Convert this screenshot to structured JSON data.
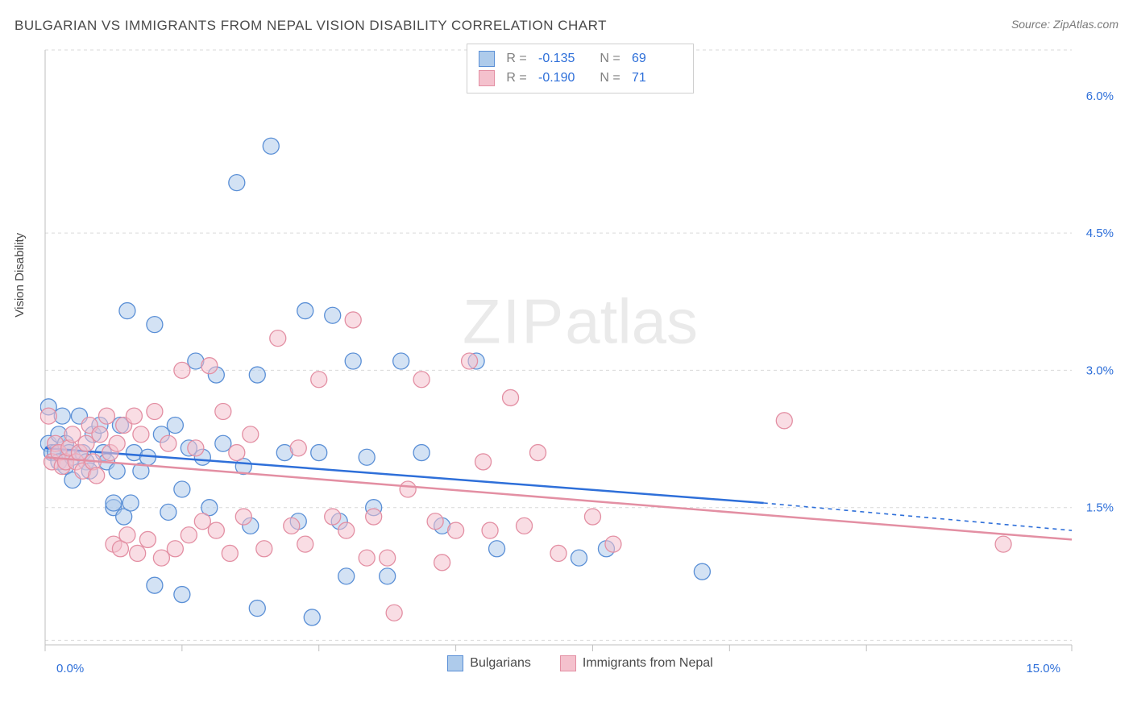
{
  "header": {
    "title": "BULGARIAN VS IMMIGRANTS FROM NEPAL VISION DISABILITY CORRELATION CHART",
    "source": "Source: ZipAtlas.com"
  },
  "ylabel": "Vision Disability",
  "watermark": {
    "left": "ZIP",
    "right": "atlas"
  },
  "chart": {
    "type": "scatter",
    "xlim": [
      0,
      15
    ],
    "ylim": [
      0,
      6.5
    ],
    "xticks": [
      0,
      2,
      4,
      6,
      8,
      10,
      12,
      15
    ],
    "xlabels_shown": {
      "0": "0.0%",
      "15": "15.0%"
    },
    "yticks": [
      1.5,
      3.0,
      4.5,
      6.0
    ],
    "ylabels": [
      "1.5%",
      "3.0%",
      "4.5%",
      "6.0%"
    ],
    "grid_y": [
      0.05,
      1.5,
      3.0,
      4.5,
      6.5
    ],
    "background": "#ffffff",
    "grid_color": "#d9d9d9",
    "axis_color": "#bfbfbf",
    "label_color": "#2e6fd9",
    "marker_r": 10,
    "series": [
      {
        "name": "Bulgarians",
        "fill": "#aecbeb",
        "stroke": "#5a8fd6",
        "fill_opacity": 0.55,
        "line_color": "#2e6fd9",
        "line_dash_color": "#2e6fd9",
        "R": "-0.135",
        "N": "69",
        "trend": {
          "x0": 0,
          "y0": 2.15,
          "x1": 10.5,
          "y1": 1.55,
          "x2": 15,
          "y2": 1.25
        },
        "points": [
          [
            0.05,
            2.6
          ],
          [
            0.05,
            2.2
          ],
          [
            0.1,
            2.1
          ],
          [
            0.15,
            2.1
          ],
          [
            0.2,
            2.0
          ],
          [
            0.2,
            2.3
          ],
          [
            0.25,
            2.5
          ],
          [
            0.3,
            1.95
          ],
          [
            0.3,
            2.2
          ],
          [
            0.35,
            2.1
          ],
          [
            0.4,
            1.8
          ],
          [
            0.4,
            2.05
          ],
          [
            0.5,
            2.5
          ],
          [
            0.55,
            2.1
          ],
          [
            0.6,
            2.0
          ],
          [
            0.65,
            1.9
          ],
          [
            0.7,
            2.3
          ],
          [
            0.8,
            2.4
          ],
          [
            0.85,
            2.1
          ],
          [
            0.9,
            2.0
          ],
          [
            1.0,
            1.5
          ],
          [
            1.0,
            1.55
          ],
          [
            1.05,
            1.9
          ],
          [
            1.1,
            2.4
          ],
          [
            1.15,
            1.4
          ],
          [
            1.2,
            3.65
          ],
          [
            1.25,
            1.55
          ],
          [
            1.3,
            2.1
          ],
          [
            1.4,
            1.9
          ],
          [
            1.5,
            2.05
          ],
          [
            1.6,
            3.5
          ],
          [
            1.6,
            0.65
          ],
          [
            1.7,
            2.3
          ],
          [
            1.8,
            1.45
          ],
          [
            1.9,
            2.4
          ],
          [
            2.0,
            1.7
          ],
          [
            2.0,
            0.55
          ],
          [
            2.1,
            2.15
          ],
          [
            2.2,
            3.1
          ],
          [
            2.3,
            2.05
          ],
          [
            2.4,
            1.5
          ],
          [
            2.5,
            2.95
          ],
          [
            2.6,
            2.2
          ],
          [
            2.8,
            5.05
          ],
          [
            2.9,
            1.95
          ],
          [
            3.0,
            1.3
          ],
          [
            3.1,
            2.95
          ],
          [
            3.1,
            0.4
          ],
          [
            3.3,
            5.45
          ],
          [
            3.5,
            2.1
          ],
          [
            3.7,
            1.35
          ],
          [
            3.8,
            3.65
          ],
          [
            3.9,
            0.3
          ],
          [
            4.0,
            2.1
          ],
          [
            4.2,
            3.6
          ],
          [
            4.3,
            1.35
          ],
          [
            4.4,
            0.75
          ],
          [
            4.5,
            3.1
          ],
          [
            4.7,
            2.05
          ],
          [
            4.8,
            1.5
          ],
          [
            5.0,
            0.75
          ],
          [
            5.2,
            3.1
          ],
          [
            5.5,
            2.1
          ],
          [
            5.8,
            1.3
          ],
          [
            6.3,
            3.1
          ],
          [
            6.6,
            1.05
          ],
          [
            7.8,
            0.95
          ],
          [
            8.2,
            1.05
          ],
          [
            9.6,
            0.8
          ]
        ]
      },
      {
        "name": "Immigrants from Nepal",
        "fill": "#f4c1cd",
        "stroke": "#e38fa3",
        "fill_opacity": 0.55,
        "line_color": "#e38fa3",
        "line_dash_color": "#e38fa3",
        "R": "-0.190",
        "N": "71",
        "trend": {
          "x0": 0,
          "y0": 2.05,
          "x1": 15,
          "y1": 1.15,
          "x2": 15,
          "y2": 1.15
        },
        "points": [
          [
            0.05,
            2.5
          ],
          [
            0.1,
            2.0
          ],
          [
            0.15,
            2.2
          ],
          [
            0.2,
            2.1
          ],
          [
            0.25,
            1.95
          ],
          [
            0.3,
            2.0
          ],
          [
            0.35,
            2.15
          ],
          [
            0.4,
            2.3
          ],
          [
            0.45,
            2.0
          ],
          [
            0.5,
            2.1
          ],
          [
            0.55,
            1.9
          ],
          [
            0.6,
            2.2
          ],
          [
            0.65,
            2.4
          ],
          [
            0.7,
            2.0
          ],
          [
            0.75,
            1.85
          ],
          [
            0.8,
            2.3
          ],
          [
            0.9,
            2.5
          ],
          [
            0.95,
            2.1
          ],
          [
            1.0,
            1.1
          ],
          [
            1.05,
            2.2
          ],
          [
            1.1,
            1.05
          ],
          [
            1.15,
            2.4
          ],
          [
            1.2,
            1.2
          ],
          [
            1.3,
            2.5
          ],
          [
            1.35,
            1.0
          ],
          [
            1.4,
            2.3
          ],
          [
            1.5,
            1.15
          ],
          [
            1.6,
            2.55
          ],
          [
            1.7,
            0.95
          ],
          [
            1.8,
            2.2
          ],
          [
            1.9,
            1.05
          ],
          [
            2.0,
            3.0
          ],
          [
            2.1,
            1.2
          ],
          [
            2.2,
            2.15
          ],
          [
            2.3,
            1.35
          ],
          [
            2.4,
            3.05
          ],
          [
            2.5,
            1.25
          ],
          [
            2.6,
            2.55
          ],
          [
            2.7,
            1.0
          ],
          [
            2.8,
            2.1
          ],
          [
            2.9,
            1.4
          ],
          [
            3.0,
            2.3
          ],
          [
            3.2,
            1.05
          ],
          [
            3.4,
            3.35
          ],
          [
            3.6,
            1.3
          ],
          [
            3.7,
            2.15
          ],
          [
            3.8,
            1.1
          ],
          [
            4.0,
            2.9
          ],
          [
            4.2,
            1.4
          ],
          [
            4.4,
            1.25
          ],
          [
            4.5,
            3.55
          ],
          [
            4.7,
            0.95
          ],
          [
            4.8,
            1.4
          ],
          [
            5.0,
            0.95
          ],
          [
            5.1,
            0.35
          ],
          [
            5.3,
            1.7
          ],
          [
            5.5,
            2.9
          ],
          [
            5.7,
            1.35
          ],
          [
            5.8,
            0.9
          ],
          [
            6.0,
            1.25
          ],
          [
            6.2,
            3.1
          ],
          [
            6.4,
            2.0
          ],
          [
            6.5,
            1.25
          ],
          [
            6.8,
            2.7
          ],
          [
            7.0,
            1.3
          ],
          [
            7.2,
            2.1
          ],
          [
            7.5,
            1.0
          ],
          [
            8.0,
            1.4
          ],
          [
            8.3,
            1.1
          ],
          [
            10.8,
            2.45
          ],
          [
            14.0,
            1.1
          ]
        ]
      }
    ]
  },
  "legend_bottom": [
    {
      "label": "Bulgarians",
      "fill": "#aecbeb",
      "stroke": "#5a8fd6"
    },
    {
      "label": "Immigrants from Nepal",
      "fill": "#f4c1cd",
      "stroke": "#e38fa3"
    }
  ]
}
